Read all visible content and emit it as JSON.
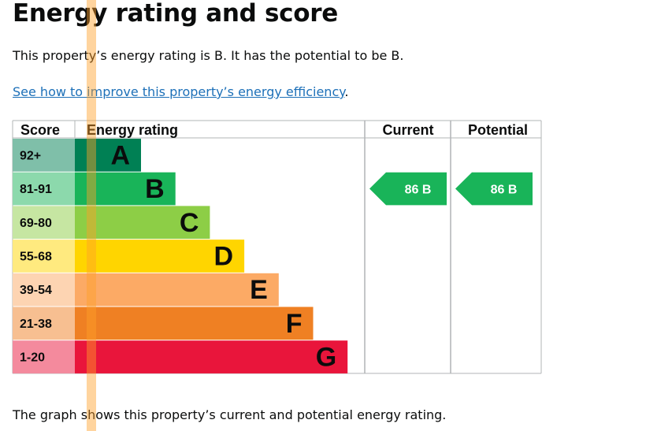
{
  "page": {
    "title": "Energy rating and score",
    "intro": "This property’s energy rating is B. It has the potential to be B.",
    "link_text": "See how to improve this property’s energy efficiency",
    "link_suffix": ".",
    "footer": "The graph shows this property’s current and potential energy rating."
  },
  "chart_data": {
    "type": "table",
    "headers": {
      "score": "Score",
      "rating": "Energy rating",
      "current": "Current",
      "potential": "Potential"
    },
    "bands": [
      {
        "score": "92+",
        "letter": "A",
        "color": "#008054",
        "score_bg": "#7fbfa9"
      },
      {
        "score": "81-91",
        "letter": "B",
        "color": "#19b459",
        "score_bg": "#8cd9ac"
      },
      {
        "score": "69-80",
        "letter": "C",
        "color": "#8dce46",
        "score_bg": "#c6e6a2"
      },
      {
        "score": "55-68",
        "letter": "D",
        "color": "#ffd500",
        "score_bg": "#ffea7f"
      },
      {
        "score": "39-54",
        "letter": "E",
        "color": "#fcaa65",
        "score_bg": "#fdd4b2"
      },
      {
        "score": "21-38",
        "letter": "F",
        "color": "#ef8023",
        "score_bg": "#f7bf91"
      },
      {
        "score": "1-20",
        "letter": "G",
        "color": "#e9153b",
        "score_bg": "#f48a9d"
      }
    ],
    "current": {
      "score": 86,
      "letter": "B",
      "label": "86 B",
      "color": "#19b459"
    },
    "potential": {
      "score": 86,
      "letter": "B",
      "label": "86 B",
      "color": "#19b459"
    }
  }
}
